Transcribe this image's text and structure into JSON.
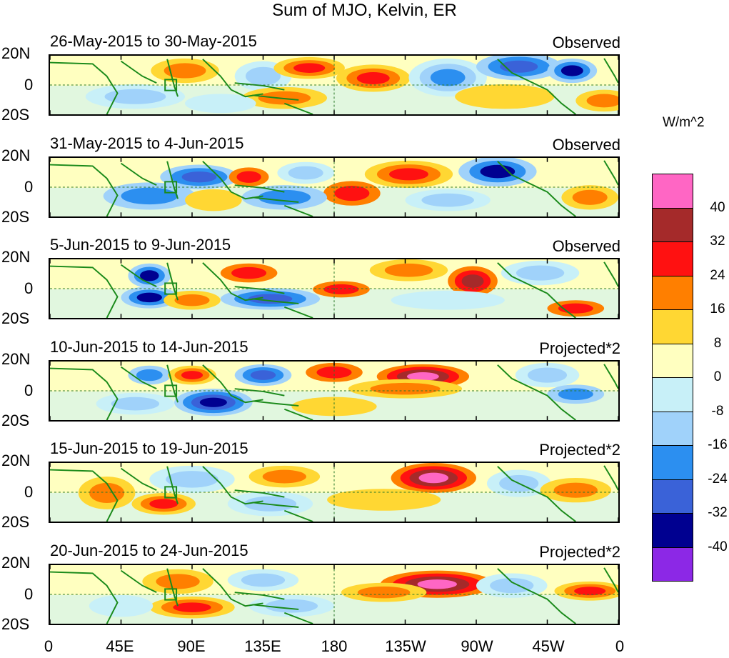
{
  "title": "Sum of MJO, Kelvin, ER",
  "panels": [
    {
      "date": "26-May-2015 to 30-May-2015",
      "tag": "Observed"
    },
    {
      "date": "31-May-2015 to 4-Jun-2015",
      "tag": "Observed"
    },
    {
      "date": "5-Jun-2015 to 9-Jun-2015",
      "tag": "Observed"
    },
    {
      "date": "10-Jun-2015 to 14-Jun-2015",
      "tag": "Projected*2"
    },
    {
      "date": "15-Jun-2015 to 19-Jun-2015",
      "tag": "Projected*2"
    },
    {
      "date": "20-Jun-2015 to 24-Jun-2015",
      "tag": "Projected*2"
    }
  ],
  "y_labels": [
    "20N",
    "0",
    "20S"
  ],
  "x_labels": [
    "0",
    "45E",
    "90E",
    "135E",
    "180",
    "135W",
    "90W",
    "45W",
    "0"
  ],
  "units": "W/m^2",
  "colorbar": {
    "labels": [
      "40",
      "32",
      "24",
      "16",
      "8",
      "0",
      "-8",
      "-16",
      "-24",
      "-32",
      "-40"
    ],
    "colors": [
      "#ff66c4",
      "#a52a2a",
      "#ff1111",
      "#ff7f00",
      "#ffd733",
      "#ffffc0",
      "#c8f0f8",
      "#a0d2fa",
      "#2c8ff0",
      "#3a62d8",
      "#000090",
      "#8c28e6"
    ]
  },
  "map": {
    "lon_range": [
      "0",
      "0"
    ],
    "lat_range": [
      "20S",
      "20N"
    ],
    "box_marker": "Indian Ocean reference box near 75E, 0"
  }
}
